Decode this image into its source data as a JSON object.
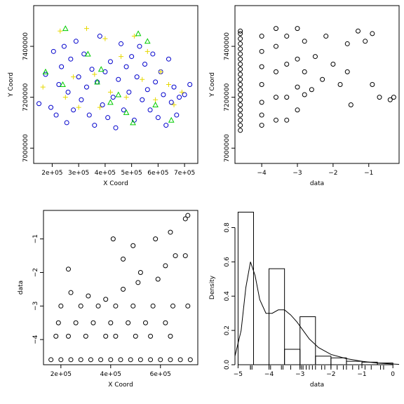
{
  "chart_data": [
    {
      "id": "p1",
      "type": "scatter",
      "xlabel": "X Coord",
      "ylabel": "Y Coord",
      "xlim": [
        130000,
        750000
      ],
      "ylim": [
        6940000,
        7560000
      ],
      "xticks": [
        200000,
        300000,
        400000,
        500000,
        600000,
        700000
      ],
      "xtick_labels": [
        "2e+05",
        "3e+05",
        "4e+05",
        "5e+05",
        "6e+05",
        "7e+05"
      ],
      "yticks": [
        7000000,
        7200000,
        7400000
      ],
      "ytick_labels": [
        "7000000",
        "7200000",
        "7400000"
      ],
      "series": [
        {
          "marker": "circle",
          "color": "#0000cc",
          "points": [
            [
              150000,
              7175000
            ],
            [
              175000,
              7290000
            ],
            [
              195000,
              7160000
            ],
            [
              205000,
              7380000
            ],
            [
              215000,
              7130000
            ],
            [
              225000,
              7250000
            ],
            [
              235000,
              7320000
            ],
            [
              245000,
              7400000
            ],
            [
              255000,
              7100000
            ],
            [
              260000,
              7220000
            ],
            [
              270000,
              7350000
            ],
            [
              280000,
              7150000
            ],
            [
              290000,
              7420000
            ],
            [
              300000,
              7280000
            ],
            [
              310000,
              7190000
            ],
            [
              320000,
              7370000
            ],
            [
              330000,
              7240000
            ],
            [
              340000,
              7130000
            ],
            [
              350000,
              7310000
            ],
            [
              360000,
              7090000
            ],
            [
              370000,
              7260000
            ],
            [
              380000,
              7440000
            ],
            [
              390000,
              7170000
            ],
            [
              400000,
              7300000
            ],
            [
              410000,
              7120000
            ],
            [
              420000,
              7340000
            ],
            [
              430000,
              7200000
            ],
            [
              440000,
              7080000
            ],
            [
              450000,
              7270000
            ],
            [
              460000,
              7410000
            ],
            [
              470000,
              7150000
            ],
            [
              480000,
              7320000
            ],
            [
              490000,
              7220000
            ],
            [
              500000,
              7360000
            ],
            [
              510000,
              7110000
            ],
            [
              520000,
              7280000
            ],
            [
              530000,
              7400000
            ],
            [
              540000,
              7190000
            ],
            [
              550000,
              7330000
            ],
            [
              560000,
              7230000
            ],
            [
              570000,
              7150000
            ],
            [
              580000,
              7370000
            ],
            [
              590000,
              7260000
            ],
            [
              600000,
              7120000
            ],
            [
              610000,
              7300000
            ],
            [
              620000,
              7210000
            ],
            [
              630000,
              7090000
            ],
            [
              640000,
              7350000
            ],
            [
              650000,
              7180000
            ],
            [
              660000,
              7240000
            ],
            [
              670000,
              7130000
            ],
            [
              680000,
              7200000
            ],
            [
              700000,
              7210000
            ],
            [
              720000,
              7250000
            ]
          ]
        },
        {
          "marker": "plus",
          "color": "#e6d800",
          "points": [
            [
              165000,
              7240000
            ],
            [
              230000,
              7460000
            ],
            [
              280000,
              7280000
            ],
            [
              300000,
              7160000
            ],
            [
              330000,
              7470000
            ],
            [
              360000,
              7290000
            ],
            [
              400000,
              7430000
            ],
            [
              420000,
              7220000
            ],
            [
              460000,
              7360000
            ],
            [
              480000,
              7200000
            ],
            [
              510000,
              7440000
            ],
            [
              540000,
              7270000
            ],
            [
              560000,
              7380000
            ],
            [
              590000,
              7190000
            ],
            [
              610000,
              7300000
            ],
            [
              640000,
              7250000
            ],
            [
              660000,
              7170000
            ],
            [
              690000,
              7220000
            ],
            [
              380000,
              7160000
            ],
            [
              250000,
              7200000
            ]
          ]
        },
        {
          "marker": "triangle",
          "color": "#00cc00",
          "points": [
            [
              175000,
              7300000
            ],
            [
              250000,
              7470000
            ],
            [
              335000,
              7370000
            ],
            [
              385000,
              7310000
            ],
            [
              420000,
              7180000
            ],
            [
              450000,
              7210000
            ],
            [
              480000,
              7140000
            ],
            [
              505000,
              7100000
            ],
            [
              525000,
              7450000
            ],
            [
              560000,
              7420000
            ],
            [
              590000,
              7170000
            ],
            [
              650000,
              7110000
            ],
            [
              240000,
              7250000
            ],
            [
              370000,
              7260000
            ]
          ]
        }
      ]
    },
    {
      "id": "p2",
      "type": "scatter",
      "xlabel": "data",
      "ylabel": "Y Coord",
      "xlim": [
        -4.75,
        -0.15
      ],
      "ylim": [
        6940000,
        7560000
      ],
      "xticks": [
        -4,
        -3,
        -2,
        -1
      ],
      "xtick_labels": [
        "−4",
        "−3",
        "−2",
        "−1"
      ],
      "yticks": [
        7000000,
        7200000,
        7400000
      ],
      "ytick_labels": [
        "7000000",
        "7200000",
        "7400000"
      ],
      "series": [
        {
          "marker": "circle",
          "color": "#000000",
          "points": [
            [
              -4.6,
              7070000
            ],
            [
              -4.6,
              7090000
            ],
            [
              -4.6,
              7110000
            ],
            [
              -4.6,
              7130000
            ],
            [
              -4.6,
              7150000
            ],
            [
              -4.6,
              7170000
            ],
            [
              -4.6,
              7190000
            ],
            [
              -4.6,
              7210000
            ],
            [
              -4.6,
              7230000
            ],
            [
              -4.6,
              7250000
            ],
            [
              -4.6,
              7270000
            ],
            [
              -4.6,
              7290000
            ],
            [
              -4.6,
              7310000
            ],
            [
              -4.6,
              7330000
            ],
            [
              -4.6,
              7350000
            ],
            [
              -4.6,
              7370000
            ],
            [
              -4.6,
              7390000
            ],
            [
              -4.6,
              7410000
            ],
            [
              -4.6,
              7430000
            ],
            [
              -4.6,
              7450000
            ],
            [
              -4.6,
              7460000
            ],
            [
              -4.0,
              7090000
            ],
            [
              -4.0,
              7130000
            ],
            [
              -4.0,
              7180000
            ],
            [
              -4.0,
              7250000
            ],
            [
              -4.0,
              7320000
            ],
            [
              -4.0,
              7380000
            ],
            [
              -4.0,
              7440000
            ],
            [
              -3.6,
              7110000
            ],
            [
              -3.6,
              7200000
            ],
            [
              -3.6,
              7300000
            ],
            [
              -3.6,
              7400000
            ],
            [
              -3.6,
              7470000
            ],
            [
              -3.3,
              7110000
            ],
            [
              -3.3,
              7200000
            ],
            [
              -3.3,
              7330000
            ],
            [
              -3.3,
              7440000
            ],
            [
              -3.0,
              7150000
            ],
            [
              -3.0,
              7240000
            ],
            [
              -3.0,
              7350000
            ],
            [
              -3.0,
              7470000
            ],
            [
              -2.8,
              7210000
            ],
            [
              -2.8,
              7300000
            ],
            [
              -2.8,
              7420000
            ],
            [
              -2.6,
              7230000
            ],
            [
              -2.5,
              7360000
            ],
            [
              -2.3,
              7270000
            ],
            [
              -2.2,
              7440000
            ],
            [
              -2.0,
              7330000
            ],
            [
              -1.8,
              7250000
            ],
            [
              -1.6,
              7300000
            ],
            [
              -1.6,
              7410000
            ],
            [
              -1.5,
              7170000
            ],
            [
              -1.3,
              7460000
            ],
            [
              -1.1,
              7420000
            ],
            [
              -0.9,
              7450000
            ],
            [
              -0.9,
              7250000
            ],
            [
              -0.7,
              7200000
            ],
            [
              -0.4,
              7190000
            ],
            [
              -0.3,
              7200000
            ]
          ]
        }
      ]
    },
    {
      "id": "p3",
      "type": "scatter",
      "xlabel": "X Coord",
      "ylabel": "data",
      "xlim": [
        130000,
        750000
      ],
      "ylim": [
        -4.75,
        -0.15
      ],
      "xticks": [
        200000,
        400000,
        600000
      ],
      "xtick_labels": [
        "2e+05",
        "4e+05",
        "6e+05"
      ],
      "yticks": [
        -4,
        -3,
        -2,
        -1
      ],
      "ytick_labels": [
        "−4",
        "−3",
        "−2",
        "−1"
      ],
      "series": [
        {
          "marker": "circle",
          "color": "#000000",
          "points": [
            [
              160000,
              -4.6
            ],
            [
              200000,
              -4.6
            ],
            [
              240000,
              -4.6
            ],
            [
              280000,
              -4.6
            ],
            [
              320000,
              -4.6
            ],
            [
              360000,
              -4.6
            ],
            [
              400000,
              -4.6
            ],
            [
              440000,
              -4.6
            ],
            [
              480000,
              -4.6
            ],
            [
              520000,
              -4.6
            ],
            [
              560000,
              -4.6
            ],
            [
              600000,
              -4.6
            ],
            [
              640000,
              -4.6
            ],
            [
              680000,
              -4.6
            ],
            [
              720000,
              -4.6
            ],
            [
              180000,
              -3.9
            ],
            [
              230000,
              -3.9
            ],
            [
              300000,
              -3.9
            ],
            [
              380000,
              -3.9
            ],
            [
              420000,
              -3.9
            ],
            [
              500000,
              -3.9
            ],
            [
              560000,
              -3.9
            ],
            [
              640000,
              -3.9
            ],
            [
              190000,
              -3.5
            ],
            [
              260000,
              -3.5
            ],
            [
              330000,
              -3.5
            ],
            [
              400000,
              -3.5
            ],
            [
              470000,
              -3.5
            ],
            [
              540000,
              -3.5
            ],
            [
              620000,
              -3.5
            ],
            [
              200000,
              -3.0
            ],
            [
              280000,
              -3.0
            ],
            [
              350000,
              -3.0
            ],
            [
              420000,
              -3.0
            ],
            [
              490000,
              -3.0
            ],
            [
              570000,
              -3.0
            ],
            [
              650000,
              -3.0
            ],
            [
              710000,
              -3.0
            ],
            [
              240000,
              -2.6
            ],
            [
              310000,
              -2.7
            ],
            [
              380000,
              -2.8
            ],
            [
              450000,
              -2.5
            ],
            [
              510000,
              -2.3
            ],
            [
              590000,
              -2.2
            ],
            [
              620000,
              -1.8
            ],
            [
              660000,
              -1.5
            ],
            [
              700000,
              -1.5
            ],
            [
              410000,
              -1.0
            ],
            [
              490000,
              -1.2
            ],
            [
              580000,
              -1.0
            ],
            [
              640000,
              -0.8
            ],
            [
              700000,
              -0.4
            ],
            [
              710000,
              -0.3
            ],
            [
              230000,
              -1.9
            ],
            [
              450000,
              -1.6
            ],
            [
              520000,
              -2.0
            ]
          ]
        }
      ]
    },
    {
      "id": "p4",
      "type": "histogram",
      "xlabel": "data",
      "ylabel": "Density",
      "xlim": [
        -5.1,
        0.2
      ],
      "ylim": [
        0,
        0.9
      ],
      "xticks": [
        -5,
        -4,
        -3,
        -2,
        -1,
        0
      ],
      "xtick_labels": [
        "−5",
        "−4",
        "−3",
        "−2",
        "−1",
        "0"
      ],
      "yticks": [
        0,
        0.2,
        0.4,
        0.6,
        0.8
      ],
      "ytick_labels": [
        "0.0",
        "0.2",
        "0.4",
        "0.6",
        "0.8"
      ],
      "bins": [
        [
          -5.0,
          -4.5,
          0.89
        ],
        [
          -4.0,
          -3.5,
          0.56
        ],
        [
          -3.5,
          -3.0,
          0.09
        ],
        [
          -3.0,
          -2.5,
          0.28
        ],
        [
          -2.5,
          -2.0,
          0.05
        ],
        [
          -2.0,
          -1.5,
          0.04
        ],
        [
          -1.5,
          -1.0,
          0.02
        ],
        [
          -1.0,
          -0.5,
          0.015
        ],
        [
          -0.5,
          0.0,
          0.01
        ]
      ],
      "density": [
        [
          -5.1,
          0.05
        ],
        [
          -4.9,
          0.2
        ],
        [
          -4.75,
          0.45
        ],
        [
          -4.6,
          0.6
        ],
        [
          -4.45,
          0.52
        ],
        [
          -4.3,
          0.38
        ],
        [
          -4.1,
          0.3
        ],
        [
          -3.9,
          0.3
        ],
        [
          -3.7,
          0.32
        ],
        [
          -3.5,
          0.32
        ],
        [
          -3.3,
          0.29
        ],
        [
          -3.1,
          0.25
        ],
        [
          -2.9,
          0.2
        ],
        [
          -2.7,
          0.15
        ],
        [
          -2.4,
          0.1
        ],
        [
          -2.0,
          0.06
        ],
        [
          -1.5,
          0.035
        ],
        [
          -1.0,
          0.02
        ],
        [
          -0.5,
          0.01
        ],
        [
          0.0,
          0.004
        ],
        [
          0.2,
          0.002
        ]
      ],
      "rug": [
        -4.6,
        -4.6,
        -4.55,
        -4.0,
        -3.95,
        -3.6,
        -3.55,
        -3.3,
        -3.0,
        -2.95,
        -2.9,
        -2.8,
        -2.7,
        -2.6,
        -2.5,
        -2.3,
        -2.2,
        -2.0,
        -1.8,
        -1.6,
        -1.5,
        -1.3,
        -1.1,
        -0.9,
        -0.7,
        -0.4,
        -0.3
      ]
    }
  ]
}
